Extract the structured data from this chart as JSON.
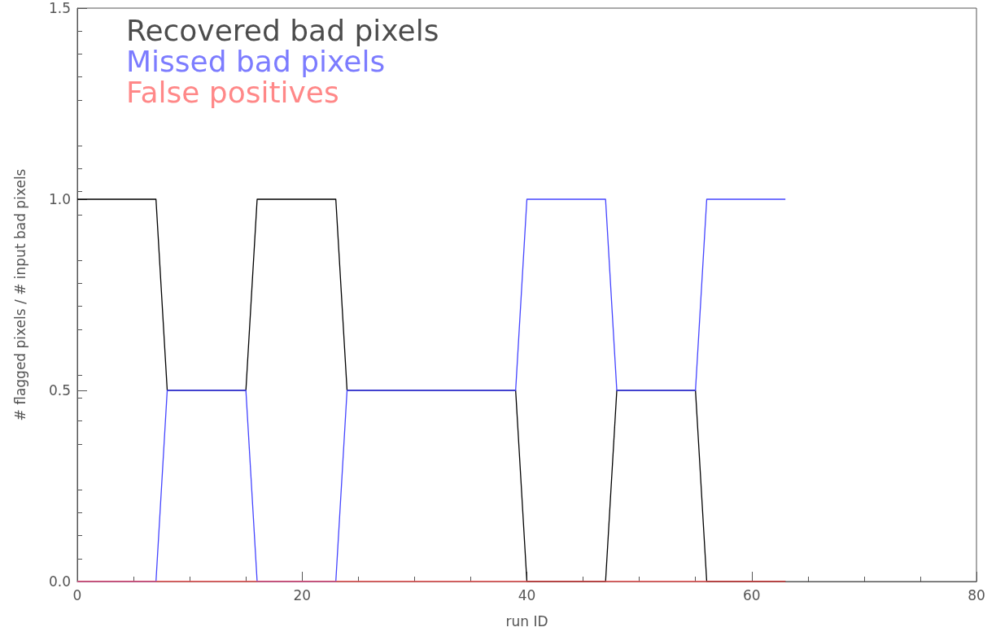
{
  "chart_data": {
    "type": "line",
    "xlabel": "run ID",
    "ylabel": "# flagged pixels / # input bad pixels",
    "xlim": [
      0,
      80
    ],
    "xticks": [
      0,
      20,
      40,
      60,
      80
    ],
    "ylim": [
      0,
      1.5
    ],
    "yticks": [
      {
        "value": 0,
        "label": "0.0"
      },
      {
        "value": 0.5,
        "label": "0.5"
      },
      {
        "value": 1,
        "label": "1.0"
      },
      {
        "value": 1.5,
        "label": "1.5"
      }
    ],
    "legend": "top left",
    "marker": "none",
    "line_style": "solid",
    "grid": false,
    "series": [
      {
        "name": "Recovered bad pixels",
        "color": "#000000",
        "x": [
          0,
          7,
          8,
          15,
          16,
          23,
          24,
          39,
          40,
          47,
          48,
          55,
          56,
          63
        ],
        "values": [
          1,
          1,
          0.5,
          0.5,
          1,
          1,
          0.5,
          0.5,
          0,
          0,
          0.5,
          0.5,
          0,
          0
        ]
      },
      {
        "name": "Missed bad pixels",
        "color": "#4444ff",
        "x": [
          0,
          7,
          8,
          15,
          16,
          23,
          24,
          39,
          40,
          47,
          48,
          55,
          56,
          63
        ],
        "values": [
          0,
          0,
          0.5,
          0.5,
          0,
          0,
          0.5,
          0.5,
          1,
          1,
          0.5,
          0.5,
          1,
          1
        ]
      },
      {
        "name": "False positives",
        "color": "#ff5555",
        "x": [
          0,
          63
        ],
        "values": [
          0,
          0
        ]
      }
    ]
  }
}
